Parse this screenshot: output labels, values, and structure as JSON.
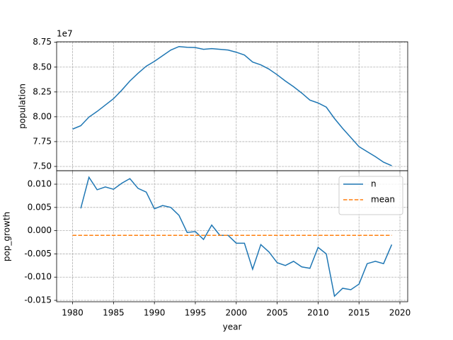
{
  "chart_data": [
    {
      "type": "line",
      "y_label": "population",
      "y_offset_label": "1e7",
      "x": [
        1980,
        1981,
        1982,
        1983,
        1984,
        1985,
        1986,
        1987,
        1988,
        1989,
        1990,
        1991,
        1992,
        1993,
        1994,
        1995,
        1996,
        1997,
        1998,
        1999,
        2000,
        2001,
        2002,
        2003,
        2004,
        2005,
        2006,
        2007,
        2008,
        2009,
        2010,
        2011,
        2012,
        2013,
        2014,
        2015,
        2016,
        2017,
        2018,
        2019
      ],
      "series": [
        {
          "color": "#1f77b4",
          "linestyle": "solid",
          "values": [
            7.876,
            7.91,
            7.997,
            8.054,
            8.118,
            8.182,
            8.267,
            8.36,
            8.438,
            8.509,
            8.558,
            8.615,
            8.672,
            8.707,
            8.7,
            8.697,
            8.679,
            8.686,
            8.679,
            8.672,
            8.65,
            8.622,
            8.551,
            8.523,
            8.48,
            8.423,
            8.36,
            8.303,
            8.239,
            8.168,
            8.139,
            8.097,
            7.983,
            7.883,
            7.791,
            7.699,
            7.649,
            7.599,
            7.543,
            7.507
          ]
        }
      ],
      "xlim": [
        1978.05,
        2020.95
      ],
      "xticks": [
        1980,
        1985,
        1990,
        1995,
        2000,
        2005,
        2010,
        2015,
        2020
      ],
      "ylim": [
        7.457,
        8.755
      ],
      "yticks": [
        {
          "value": 7.5,
          "label": "7.50"
        },
        7.75,
        {
          "value": 8,
          "label": "8.00"
        },
        8.25,
        {
          "value": 8.5,
          "label": "8.50"
        },
        8.75
      ],
      "grid": true
    },
    {
      "type": "line",
      "x_label": "year",
      "y_label": "pop_growth",
      "x": [
        1980,
        1981,
        1982,
        1983,
        1984,
        1985,
        1986,
        1987,
        1988,
        1989,
        1990,
        1991,
        1992,
        1993,
        1994,
        1995,
        1996,
        1997,
        1998,
        1999,
        2000,
        2001,
        2002,
        2003,
        2004,
        2005,
        2006,
        2007,
        2008,
        2009,
        2010,
        2011,
        2012,
        2013,
        2014,
        2015,
        2016,
        2017,
        2018,
        2019
      ],
      "series": [
        {
          "name": "n",
          "color": "#1f77b4",
          "linestyle": "solid",
          "values": [
            null,
            0.0048,
            0.0115,
            0.0088,
            0.0094,
            0.0089,
            0.0102,
            0.0112,
            0.0091,
            0.0083,
            0.0047,
            0.0054,
            0.005,
            0.0033,
            -0.0004,
            -0.0002,
            -0.0019,
            0.0012,
            -0.001,
            -0.001,
            -0.0027,
            -0.0027,
            -0.0083,
            -0.003,
            -0.0046,
            -0.0069,
            -0.0075,
            -0.0066,
            -0.0078,
            -0.0081,
            -0.0036,
            -0.005,
            -0.0141,
            -0.0124,
            -0.0127,
            -0.0115,
            -0.0071,
            -0.0066,
            -0.0071,
            -0.003
          ]
        },
        {
          "name": "mean",
          "color": "#ff7f0e",
          "linestyle": "dashed",
          "values": [
            -0.001,
            -0.001,
            -0.001,
            -0.001,
            -0.001,
            -0.001,
            -0.001,
            -0.001,
            -0.001,
            -0.001,
            -0.001,
            -0.001,
            -0.001,
            -0.001,
            -0.001,
            -0.001,
            -0.001,
            -0.001,
            -0.001,
            -0.001,
            -0.001,
            -0.001,
            -0.001,
            -0.001,
            -0.001,
            -0.001,
            -0.001,
            -0.001,
            -0.001,
            -0.001,
            -0.001,
            -0.001,
            -0.001,
            -0.001,
            -0.001,
            -0.001,
            -0.001,
            -0.001,
            -0.001,
            -0.001
          ]
        }
      ],
      "xlim": [
        1978.05,
        2020.95
      ],
      "xticks": [
        1980,
        1985,
        1990,
        1995,
        2000,
        2005,
        2010,
        2015,
        2020
      ],
      "ylim": [
        -0.0153,
        0.0129
      ],
      "yticks": [
        -0.015,
        {
          "value": -0.01,
          "label": "-0.010"
        },
        -0.005,
        {
          "value": 0,
          "label": "0.000"
        },
        0.005,
        {
          "value": 0.01,
          "label": "0.010"
        }
      ],
      "grid": true,
      "legend": "upper right"
    }
  ]
}
